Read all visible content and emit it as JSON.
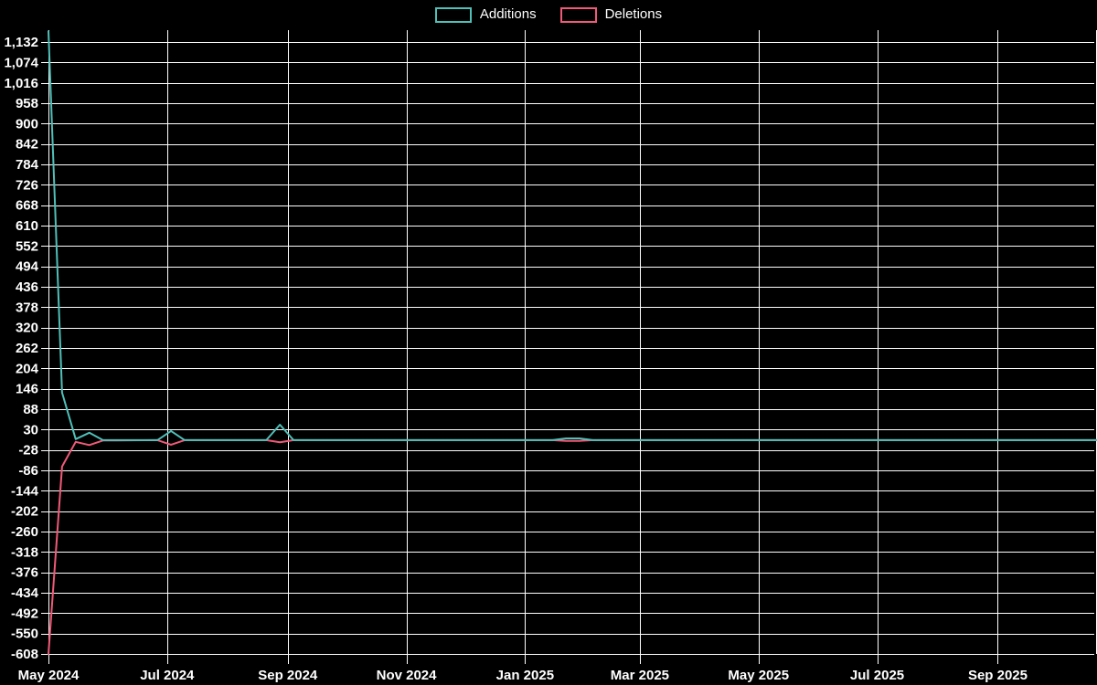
{
  "page": {
    "background": "#000000"
  },
  "legend": {
    "items": [
      {
        "id": "additions",
        "label": "Additions",
        "color": "#4fc0b8"
      },
      {
        "id": "deletions",
        "label": "Deletions",
        "color": "#f05a78"
      }
    ]
  },
  "chart_data": {
    "type": "line",
    "title": "",
    "xlabel": "",
    "ylabel": "",
    "grid": true,
    "legend_position": "top-center",
    "colors": {
      "background": "#000000",
      "grid": "#ffffff",
      "text": "#ffffff"
    },
    "x_axis": {
      "start": "2024-05-01",
      "end": "2025-10-22"
    },
    "y_axis": {
      "min": -608,
      "max": 1166,
      "tick_step": 58
    },
    "x_ticks": [
      {
        "date": "2024-05-01",
        "label": "May 2024"
      },
      {
        "date": "2024-07-01",
        "label": "Jul 2024"
      },
      {
        "date": "2024-09-01",
        "label": "Sep 2024"
      },
      {
        "date": "2024-11-01",
        "label": "Nov 2024"
      },
      {
        "date": "2025-01-01",
        "label": "Jan 2025"
      },
      {
        "date": "2025-03-01",
        "label": "Mar 2025"
      },
      {
        "date": "2025-05-01",
        "label": "May 2025"
      },
      {
        "date": "2025-07-01",
        "label": "Jul 2025"
      },
      {
        "date": "2025-09-01",
        "label": "Sep 2025"
      }
    ],
    "y_tick_values": [
      -608,
      -550,
      -492,
      -434,
      -376,
      -318,
      -260,
      -202,
      -144,
      -86,
      -28,
      30,
      88,
      146,
      204,
      262,
      320,
      378,
      436,
      494,
      552,
      610,
      668,
      726,
      784,
      842,
      900,
      958,
      1016,
      1074,
      1132
    ],
    "y_tick_labels": [
      "-608",
      "-550",
      "-492",
      "-434",
      "-376",
      "-318",
      "-260",
      "-202",
      "-144",
      "-86",
      "-28",
      "30",
      "88",
      "146",
      "204",
      "262",
      "320",
      "378",
      "436",
      "494",
      "552",
      "610",
      "668",
      "726",
      "784",
      "842",
      "900",
      "958",
      "1,016",
      "1,074",
      "1,132"
    ],
    "x": [
      "2024-05-01",
      "2024-05-08",
      "2024-05-15",
      "2024-05-22",
      "2024-05-29",
      "2024-06-26",
      "2024-07-03",
      "2024-07-10",
      "2024-08-21",
      "2024-08-28",
      "2024-09-04",
      "2025-01-15",
      "2025-01-22",
      "2025-01-29",
      "2025-02-05",
      "2025-10-22"
    ],
    "series": [
      {
        "name": "Additions",
        "color": "#4fc0b8",
        "values": [
          1163,
          135,
          3,
          21,
          0,
          0,
          26,
          0,
          0,
          44,
          0,
          0,
          5,
          5,
          0,
          0
        ]
      },
      {
        "name": "Deletions",
        "color": "#f05a78",
        "values": [
          -608,
          -75,
          -5,
          -14,
          -1,
          0,
          -13,
          0,
          0,
          -6,
          0,
          0,
          -2,
          -2,
          0,
          0
        ]
      }
    ]
  }
}
